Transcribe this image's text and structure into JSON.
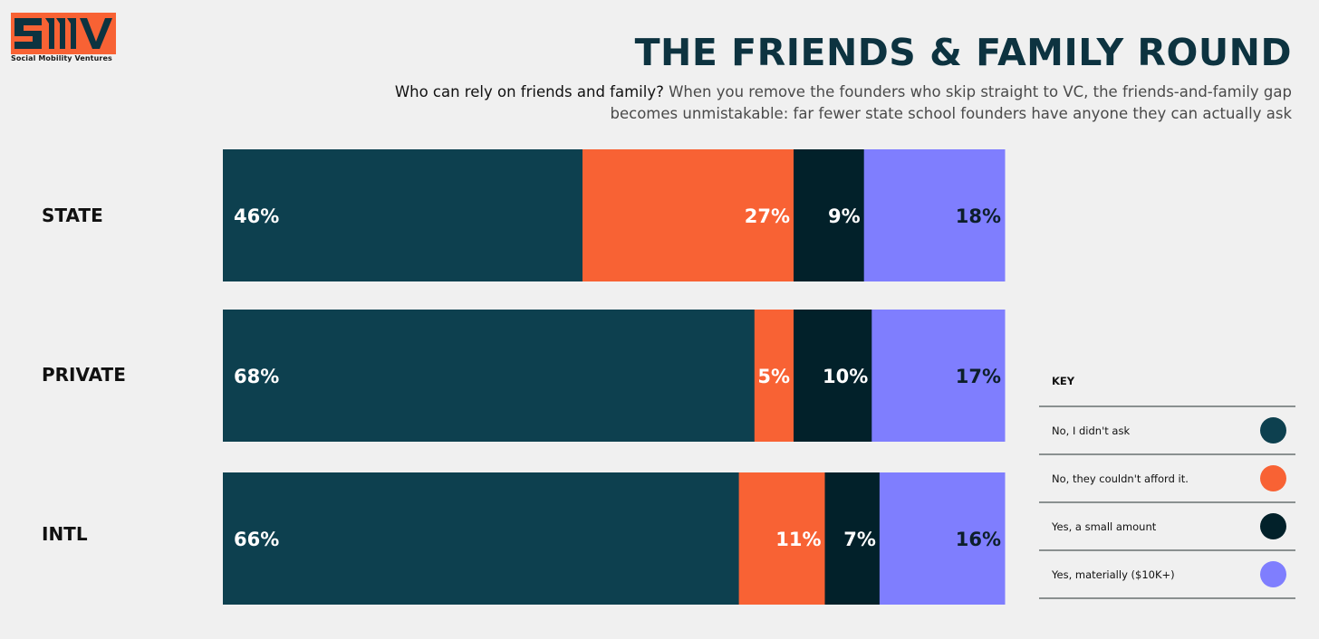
{
  "logo": {
    "mark": "SMV",
    "subtitle": "Social Mobility Ventures"
  },
  "header": {
    "title": "THE FRIENDS & FAMILY ROUND",
    "subtitle_lead": "Who can rely on friends and family?",
    "subtitle_rest": " When you remove the founders who skip straight to VC, the friends-and-family gap becomes unmistakable: far fewer state school founders have anyone they can actually ask"
  },
  "colors": {
    "didnt_ask": "#0d404f",
    "couldnt_afford": "#f86234",
    "small_amount": "#02212a",
    "materially": "#7f7efe"
  },
  "chart_data": {
    "type": "bar",
    "orientation": "horizontal",
    "stacked": true,
    "unit": "%",
    "xlim": [
      0,
      100
    ],
    "categories": [
      "STATE",
      "PRIVATE",
      "INTL"
    ],
    "series": [
      {
        "name": "No, I didn't ask",
        "values": [
          46,
          68,
          66
        ],
        "labels": [
          "46%",
          "68%",
          "66%"
        ],
        "color": "#0d404f",
        "label_color": "#ffffff"
      },
      {
        "name": "No, they couldn't afford it.",
        "values": [
          27,
          5,
          11
        ],
        "labels": [
          "27%",
          "5%",
          "11%"
        ],
        "color": "#f86234",
        "label_color": "#ffffff"
      },
      {
        "name": "Yes, a small amount",
        "values": [
          9,
          10,
          7
        ],
        "labels": [
          "9%",
          "10%",
          "7%"
        ],
        "color": "#02212a",
        "label_color": "#ffffff"
      },
      {
        "name": "Yes, materially ($10K+)",
        "values": [
          18,
          17,
          16
        ],
        "labels": [
          "18%",
          "17%",
          "16%"
        ],
        "color": "#7f7efe",
        "label_color": "#0d1f2a"
      }
    ],
    "legend_title": "KEY",
    "legend_position": "bottom-right"
  }
}
